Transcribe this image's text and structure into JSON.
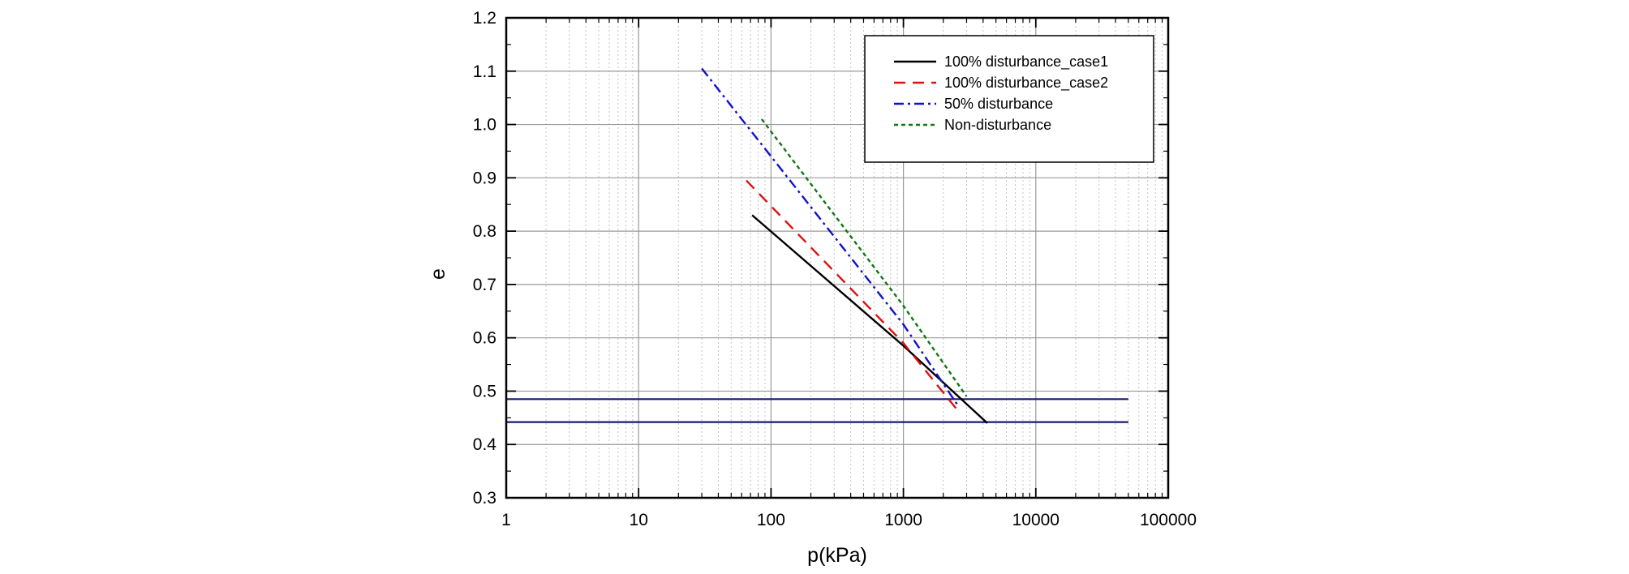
{
  "chart_data": {
    "type": "line",
    "x_scale": "log",
    "xlabel": "p(kPa)",
    "ylabel": "e",
    "xlim": [
      1,
      100000
    ],
    "ylim": [
      0.3,
      1.2
    ],
    "x_ticks": [
      1,
      10,
      100,
      1000,
      10000,
      100000
    ],
    "x_tick_labels": [
      "1",
      "10",
      "100",
      "1000",
      "10000",
      "100000"
    ],
    "y_ticks": [
      0.3,
      0.4,
      0.5,
      0.6,
      0.7,
      0.8,
      0.9,
      1.0,
      1.1,
      1.2
    ],
    "y_tick_labels": [
      "0.3",
      "0.4",
      "0.5",
      "0.6",
      "0.7",
      "0.8",
      "0.9",
      "1.0",
      "1.1",
      "1.2"
    ],
    "grid": true,
    "legend_position": "top-right",
    "series": [
      {
        "name": "100% disturbance_case1",
        "style": "solid",
        "color": "#000000",
        "points": [
          [
            72,
            0.83
          ],
          [
            1000,
            0.585
          ],
          [
            4300,
            0.44
          ]
        ]
      },
      {
        "name": "100% disturbance_case2",
        "style": "dashed",
        "color": "#dd1111",
        "points": [
          [
            65,
            0.895
          ],
          [
            1000,
            0.59
          ],
          [
            2550,
            0.465
          ]
        ]
      },
      {
        "name": "50% disturbance",
        "style": "dashdot",
        "color": "#1111cc",
        "points": [
          [
            30,
            1.105
          ],
          [
            1000,
            0.625
          ],
          [
            2550,
            0.475
          ]
        ]
      },
      {
        "name": "Non-disturbance",
        "style": "dotted",
        "color": "#117711",
        "points": [
          [
            85,
            1.01
          ],
          [
            1000,
            0.66
          ],
          [
            3000,
            0.49
          ]
        ]
      }
    ],
    "reference_lines": [
      {
        "type": "horizontal",
        "y": 0.485,
        "x_from": 1,
        "x_to": 50000,
        "color": "#1a1a6e"
      },
      {
        "type": "horizontal",
        "y": 0.442,
        "x_from": 1,
        "x_to": 50000,
        "color": "#1a1a6e"
      }
    ]
  }
}
